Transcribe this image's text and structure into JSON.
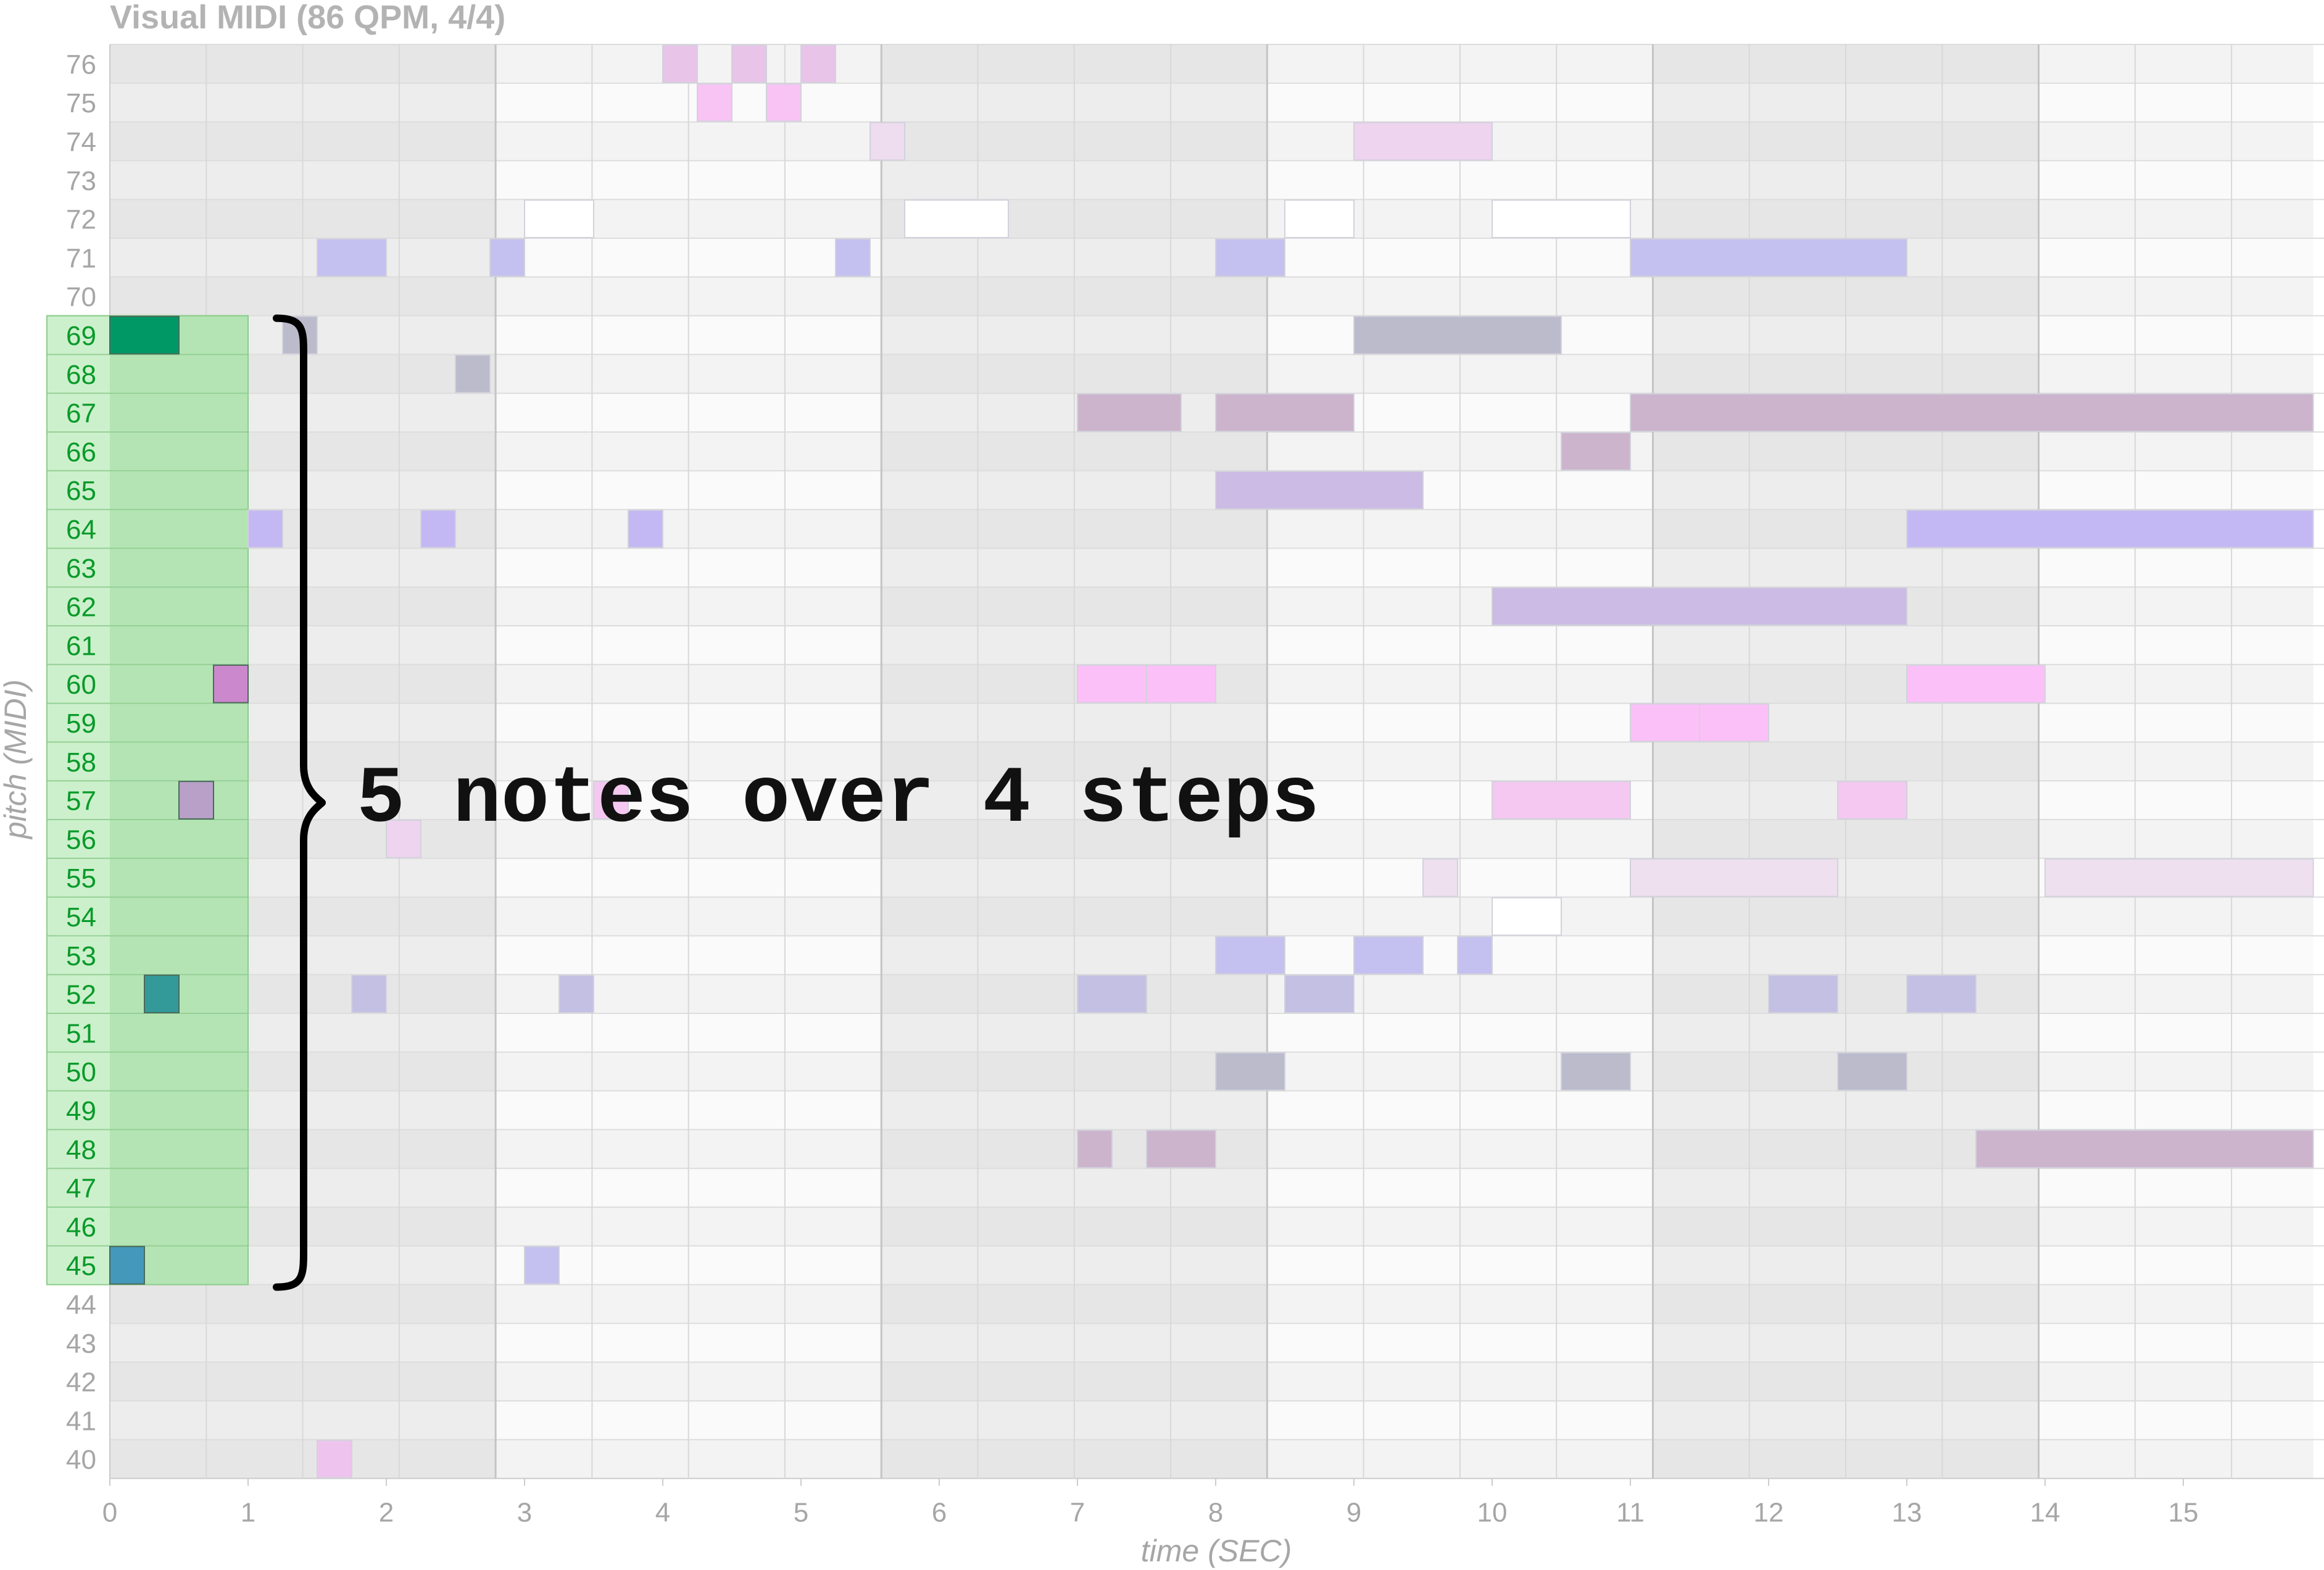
{
  "chart_data": {
    "type": "heatmap",
    "title": "Visual MIDI (86 QPM, 4/4)",
    "xlabel": "time (SEC)",
    "ylabel": "pitch (MIDI)",
    "xlim": [
      0,
      15.94
    ],
    "ylim": [
      40,
      76
    ],
    "x_ticks": [
      "0",
      "1",
      "2",
      "3",
      "4",
      "5",
      "6",
      "7",
      "8",
      "9",
      "10",
      "11",
      "12",
      "13",
      "14",
      "15"
    ],
    "pitch_ticks": [
      "40",
      "41",
      "42",
      "43",
      "44",
      "45",
      "46",
      "47",
      "48",
      "49",
      "50",
      "51",
      "52",
      "53",
      "54",
      "55",
      "56",
      "57",
      "58",
      "59",
      "60",
      "61",
      "62",
      "63",
      "64",
      "65",
      "66",
      "67",
      "68",
      "69",
      "70",
      "71",
      "72",
      "73",
      "74",
      "75",
      "76"
    ],
    "highlight": {
      "t_start": 0,
      "t_end": 1.0,
      "pitch_low": 45,
      "pitch_high": 69
    },
    "annotation": "5 notes over 4 steps",
    "highlighted_notes": [
      {
        "pitch": 69,
        "start": 0.0,
        "end": 0.5,
        "color": "#009966"
      },
      {
        "pitch": 60,
        "start": 0.75,
        "end": 1.0,
        "color": "#cc88cc"
      },
      {
        "pitch": 57,
        "start": 0.5,
        "end": 0.75,
        "color": "#b8a0c8"
      },
      {
        "pitch": 52,
        "start": 0.25,
        "end": 0.5,
        "color": "#339999"
      },
      {
        "pitch": 45,
        "start": 0.0,
        "end": 0.25,
        "color": "#4499bb"
      }
    ],
    "notes": [
      {
        "pitch": 76,
        "start": 4.0,
        "end": 4.25,
        "color": "#e8c4e8"
      },
      {
        "pitch": 76,
        "start": 4.5,
        "end": 4.75,
        "color": "#e8c4e8"
      },
      {
        "pitch": 76,
        "start": 5.0,
        "end": 5.25,
        "color": "#e8c4e8"
      },
      {
        "pitch": 75,
        "start": 4.25,
        "end": 4.5,
        "color": "#f8c4f4"
      },
      {
        "pitch": 75,
        "start": 4.75,
        "end": 5.0,
        "color": "#f8c4f4"
      },
      {
        "pitch": 74,
        "start": 5.5,
        "end": 5.75,
        "color": "#eeddee"
      },
      {
        "pitch": 74,
        "start": 9.0,
        "end": 10.0,
        "color": "#eed4ee"
      },
      {
        "pitch": 72,
        "start": 3.0,
        "end": 3.5,
        "color": "#ffffff"
      },
      {
        "pitch": 72,
        "start": 5.75,
        "end": 6.5,
        "color": "#ffffff"
      },
      {
        "pitch": 72,
        "start": 8.5,
        "end": 9.0,
        "color": "#ffffff"
      },
      {
        "pitch": 72,
        "start": 10.0,
        "end": 11.0,
        "color": "#ffffff"
      },
      {
        "pitch": 71,
        "start": 1.5,
        "end": 2.0,
        "color": "#c4c0f0"
      },
      {
        "pitch": 71,
        "start": 2.75,
        "end": 3.0,
        "color": "#c4c0f0"
      },
      {
        "pitch": 71,
        "start": 5.25,
        "end": 5.5,
        "color": "#c4c0f0"
      },
      {
        "pitch": 71,
        "start": 8.0,
        "end": 8.5,
        "color": "#c4c0f0"
      },
      {
        "pitch": 71,
        "start": 11.0,
        "end": 13.0,
        "color": "#c4c0f0"
      },
      {
        "pitch": 69,
        "start": 1.25,
        "end": 1.5,
        "color": "#bbbbcc"
      },
      {
        "pitch": 69,
        "start": 9.0,
        "end": 10.5,
        "color": "#bbbbcc"
      },
      {
        "pitch": 68,
        "start": 2.5,
        "end": 2.75,
        "color": "#bbbbcc"
      },
      {
        "pitch": 67,
        "start": 7.0,
        "end": 7.75,
        "color": "#ccb4cc"
      },
      {
        "pitch": 67,
        "start": 8.0,
        "end": 9.0,
        "color": "#ccb4cc"
      },
      {
        "pitch": 67,
        "start": 11.0,
        "end": 15.94,
        "color": "#ccb4cc"
      },
      {
        "pitch": 66,
        "start": 10.5,
        "end": 11.0,
        "color": "#ccb4cc"
      },
      {
        "pitch": 65,
        "start": 8.0,
        "end": 9.5,
        "color": "#ccbbe4"
      },
      {
        "pitch": 64,
        "start": 1.0,
        "end": 1.25,
        "color": "#c4b8f4"
      },
      {
        "pitch": 64,
        "start": 2.25,
        "end": 2.5,
        "color": "#c4b8f4"
      },
      {
        "pitch": 64,
        "start": 3.75,
        "end": 4.0,
        "color": "#c4b8f4"
      },
      {
        "pitch": 64,
        "start": 13.0,
        "end": 15.94,
        "color": "#c4b8f4"
      },
      {
        "pitch": 62,
        "start": 10.0,
        "end": 13.0,
        "color": "#ccbbe4"
      },
      {
        "pitch": 60,
        "start": 7.0,
        "end": 7.5,
        "color": "#fcc0f8"
      },
      {
        "pitch": 60,
        "start": 7.5,
        "end": 8.0,
        "color": "#fcc0f8"
      },
      {
        "pitch": 60,
        "start": 13.0,
        "end": 14.0,
        "color": "#fcc0f8"
      },
      {
        "pitch": 59,
        "start": 11.0,
        "end": 11.5,
        "color": "#fcc0f8"
      },
      {
        "pitch": 59,
        "start": 11.5,
        "end": 12.0,
        "color": "#fcc0f8"
      },
      {
        "pitch": 57,
        "start": 3.5,
        "end": 3.75,
        "color": "#f4c8f0"
      },
      {
        "pitch": 57,
        "start": 10.0,
        "end": 11.0,
        "color": "#f4c8f0"
      },
      {
        "pitch": 57,
        "start": 12.5,
        "end": 13.0,
        "color": "#f4c8f0"
      },
      {
        "pitch": 56,
        "start": 2.0,
        "end": 2.25,
        "color": "#eed4ee"
      },
      {
        "pitch": 55,
        "start": 9.5,
        "end": 9.75,
        "color": "#eee0ee"
      },
      {
        "pitch": 55,
        "start": 11.0,
        "end": 12.5,
        "color": "#eee0ee"
      },
      {
        "pitch": 55,
        "start": 14.0,
        "end": 15.94,
        "color": "#eee0ee"
      },
      {
        "pitch": 54,
        "start": 10.0,
        "end": 10.5,
        "color": "#ffffff"
      },
      {
        "pitch": 53,
        "start": 8.0,
        "end": 8.5,
        "color": "#c4c0f0"
      },
      {
        "pitch": 53,
        "start": 9.0,
        "end": 9.5,
        "color": "#c4c0f0"
      },
      {
        "pitch": 53,
        "start": 9.75,
        "end": 10.0,
        "color": "#c4c0f0"
      },
      {
        "pitch": 52,
        "start": 1.75,
        "end": 2.0,
        "color": "#c4c0e4"
      },
      {
        "pitch": 52,
        "start": 3.25,
        "end": 3.5,
        "color": "#c4c0e4"
      },
      {
        "pitch": 52,
        "start": 7.0,
        "end": 7.5,
        "color": "#c4c0e4"
      },
      {
        "pitch": 52,
        "start": 8.5,
        "end": 9.0,
        "color": "#c4c0e4"
      },
      {
        "pitch": 52,
        "start": 12.0,
        "end": 12.5,
        "color": "#c4c0e4"
      },
      {
        "pitch": 52,
        "start": 13.0,
        "end": 13.5,
        "color": "#c4c0e4"
      },
      {
        "pitch": 50,
        "start": 8.0,
        "end": 8.5,
        "color": "#bbbbcc"
      },
      {
        "pitch": 50,
        "start": 10.5,
        "end": 11.0,
        "color": "#bbbbcc"
      },
      {
        "pitch": 50,
        "start": 12.5,
        "end": 13.0,
        "color": "#bbbbcc"
      },
      {
        "pitch": 48,
        "start": 7.0,
        "end": 7.25,
        "color": "#ccb4cc"
      },
      {
        "pitch": 48,
        "start": 7.5,
        "end": 8.0,
        "color": "#ccb4cc"
      },
      {
        "pitch": 48,
        "start": 13.5,
        "end": 15.94,
        "color": "#ccb4cc"
      },
      {
        "pitch": 45,
        "start": 3.0,
        "end": 3.25,
        "color": "#c4c0f0"
      },
      {
        "pitch": 40,
        "start": 1.5,
        "end": 1.75,
        "color": "#eec4ee"
      }
    ]
  }
}
